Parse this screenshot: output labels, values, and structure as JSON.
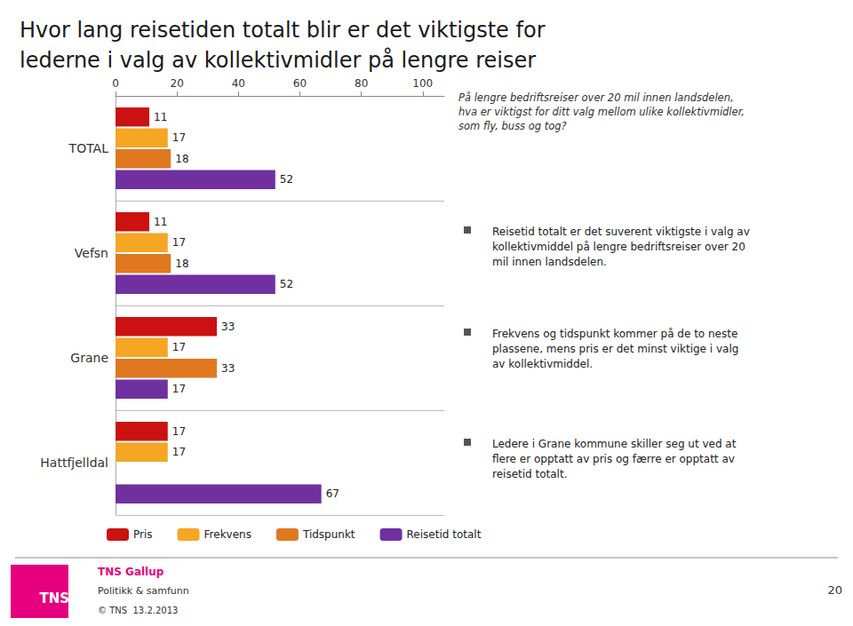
{
  "chart_data": {
    "type": "bar",
    "orientation": "horizontal",
    "title": "Hvor lang reisetiden totalt blir er det viktigste for\nlederne i valg av kollektivmidler på lengre reiser",
    "categories": [
      "TOTAL",
      "Vefsn",
      "Grane",
      "Hattfjelldal"
    ],
    "series": [
      {
        "name": "Pris",
        "color": "#cc1111",
        "values": [
          11,
          11,
          33,
          17
        ]
      },
      {
        "name": "Frekvens",
        "color": "#f5a623",
        "values": [
          17,
          17,
          17,
          17
        ]
      },
      {
        "name": "Tidspunkt",
        "color": "#e07820",
        "values": [
          18,
          18,
          33,
          null
        ]
      },
      {
        "name": "Reisetid totalt",
        "color": "#7030a0",
        "values": [
          52,
          52,
          17,
          67
        ]
      }
    ],
    "xlim": [
      0,
      107
    ],
    "xticks": [
      0,
      20,
      40,
      60,
      80,
      100
    ],
    "data_labels": true,
    "grid": false,
    "legend": "bottom",
    "annotations": [
      "På lengre bedriftsreiser over 20 mil innen landsdelen,\nhva er viktigst for ditt valg mellom ulike kollektivmidler,\nsom fly, buss og tog?",
      "Reisetid totalt er det suverent viktigste i valg av\nkollektivmiddel på lengre bedriftsreiser over 20\nmil innen landsdelen.",
      "Frekvens og tidspunkt kommer på de to neste\nplassene, mens pris er det minst viktige i valg\nav kollektivmiddel.",
      "Ledere i Grane kommune skiller seg ut ved at\nflere er opptatt av pris og færre er opptatt av\nreisetid totalt."
    ],
    "footer": {
      "color": "#e6007e",
      "logo": "TNS",
      "company": "TNS Gallup",
      "department": "Politikk & samfunn",
      "copyright": "© TNS  13.2.2013",
      "page": "20"
    }
  }
}
